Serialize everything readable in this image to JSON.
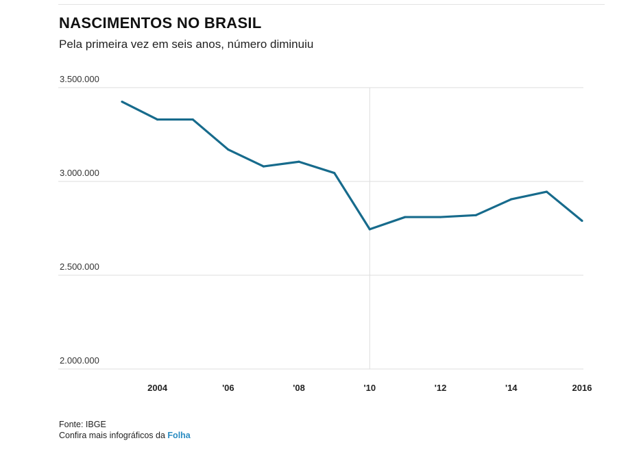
{
  "header": {
    "title": "NASCIMENTOS NO BRASIL",
    "subtitle": "Pela primeira vez em seis anos, número diminuiu"
  },
  "footer": {
    "source": "Fonte: IBGE",
    "more_prefix": "Confira mais infográficos da",
    "more_brand": "Folha"
  },
  "colors": {
    "line": "#176b8c",
    "grid": "#dddddd",
    "brand": "#2a8cc2"
  },
  "chart_data": {
    "type": "line",
    "title": "NASCIMENTOS NO BRASIL",
    "subtitle": "Pela primeira vez em seis anos, número diminuiu",
    "xlabel": "",
    "ylabel": "",
    "x": [
      2003,
      2004,
      2005,
      2006,
      2007,
      2008,
      2009,
      2010,
      2011,
      2012,
      2013,
      2014,
      2015,
      2016
    ],
    "series": [
      {
        "values": [
          3425000,
          3330000,
          3330000,
          3170000,
          3080000,
          3105000,
          3045000,
          2745000,
          2810000,
          2810000,
          2820000,
          2905000,
          2945000,
          2790000
        ]
      }
    ],
    "ylim": [
      2000000,
      3500000
    ],
    "xlim": [
      2003,
      2016
    ],
    "y_ticks": [
      3500000,
      3000000,
      2500000,
      2000000
    ],
    "y_tick_labels": [
      "3.500.000",
      "3.000.000",
      "2.500.000",
      "2.000.000"
    ],
    "x_ticks": [
      2004,
      2006,
      2008,
      2010,
      2012,
      2014,
      2016
    ],
    "x_tick_labels": [
      "2004",
      "'06",
      "'08",
      "'10",
      "'12",
      "'14",
      "2016"
    ],
    "highlight_x": 2010,
    "grid": true,
    "legend": "none"
  }
}
